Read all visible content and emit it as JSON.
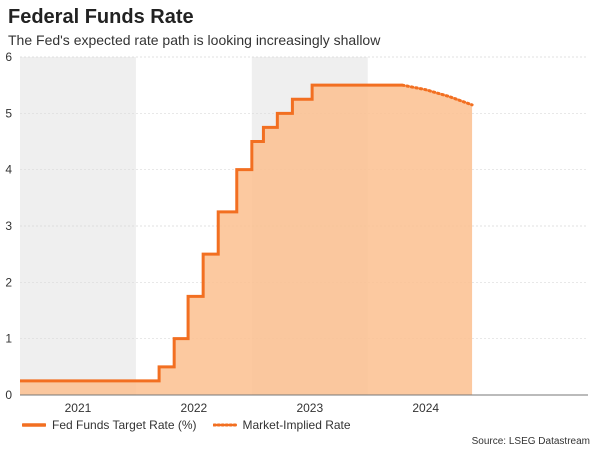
{
  "title": "Federal Funds Rate",
  "subtitle": "The Fed's expected rate path is looking increasingly shallow",
  "source": "Source: LSEG Datastream",
  "colors": {
    "line": "#f26f21",
    "fill": "#fbbf8f",
    "shade": "#efefef",
    "grid": "#d9d9d9"
  },
  "chart_data": {
    "type": "line",
    "title": "Federal Funds Rate",
    "subtitle": "The Fed's expected rate path is looking increasingly shallow",
    "xlim": [
      2020.0,
      2024.9
    ],
    "ylim": [
      0,
      6
    ],
    "y_ticks": [
      0,
      1,
      2,
      3,
      4,
      5,
      6
    ],
    "x_ticks": [
      {
        "label": "2021",
        "x": 2020.5
      },
      {
        "label": "2022",
        "x": 2021.5
      },
      {
        "label": "2023",
        "x": 2022.5
      },
      {
        "label": "2024",
        "x": 2023.5
      }
    ],
    "shaded_periods": [
      [
        2020.0,
        2021.0
      ],
      [
        2022.0,
        2023.0
      ]
    ],
    "grid": true,
    "legend_position": "bottom-left",
    "series": [
      {
        "name": "Fed Funds Target Rate (%)",
        "style": "step-solid-filled",
        "x": [
          2020.0,
          2021.2,
          2021.33,
          2021.45,
          2021.58,
          2021.71,
          2021.87,
          2022.0,
          2022.1,
          2022.22,
          2022.35,
          2022.52,
          2022.88,
          2023.3
        ],
        "y": [
          0.25,
          0.5,
          1.0,
          1.75,
          2.5,
          3.25,
          4.0,
          4.5,
          4.75,
          5.0,
          5.25,
          5.5,
          5.5,
          5.5
        ]
      },
      {
        "name": "Market-Implied Rate",
        "style": "dotted",
        "x": [
          2023.3,
          2023.5,
          2023.7,
          2023.9
        ],
        "y": [
          5.5,
          5.42,
          5.3,
          5.15
        ]
      }
    ]
  }
}
